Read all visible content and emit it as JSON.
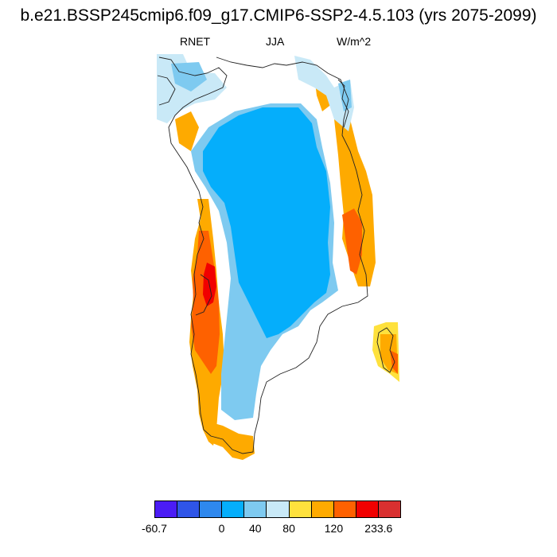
{
  "title": "b.e21.BSSP245cmip6.f09_g17.CMIP6-SSP2-4.5.103 (yrs 2075-2099)",
  "subtitle": {
    "variable": "RNET",
    "season": "JJA",
    "units": "W/m^2"
  },
  "colorbar": {
    "colors": [
      "#4b1cf5",
      "#2f55e8",
      "#2e88ee",
      "#05aefb",
      "#7ecaf0",
      "#c9e9f7",
      "#fee13d",
      "#feaa00",
      "#fe6100",
      "#f10000",
      "#d93030"
    ],
    "labels": [
      {
        "text": "-60.7",
        "edge": 0
      },
      {
        "text": "0",
        "edge": 3
      },
      {
        "text": "40",
        "edge": 4.5
      },
      {
        "text": "80",
        "edge": 6
      },
      {
        "text": "120",
        "edge": 8
      },
      {
        "text": "233.6",
        "edge": 10
      }
    ]
  },
  "map_colors": {
    "ice_core": "#05aefb",
    "ice_light": "#7ecaf0",
    "pale": "#c9e9f7",
    "yellow": "#fee13d",
    "orange": "#feaa00",
    "dark_orange": "#fe6100",
    "red": "#f10000",
    "coast": "#222222"
  }
}
